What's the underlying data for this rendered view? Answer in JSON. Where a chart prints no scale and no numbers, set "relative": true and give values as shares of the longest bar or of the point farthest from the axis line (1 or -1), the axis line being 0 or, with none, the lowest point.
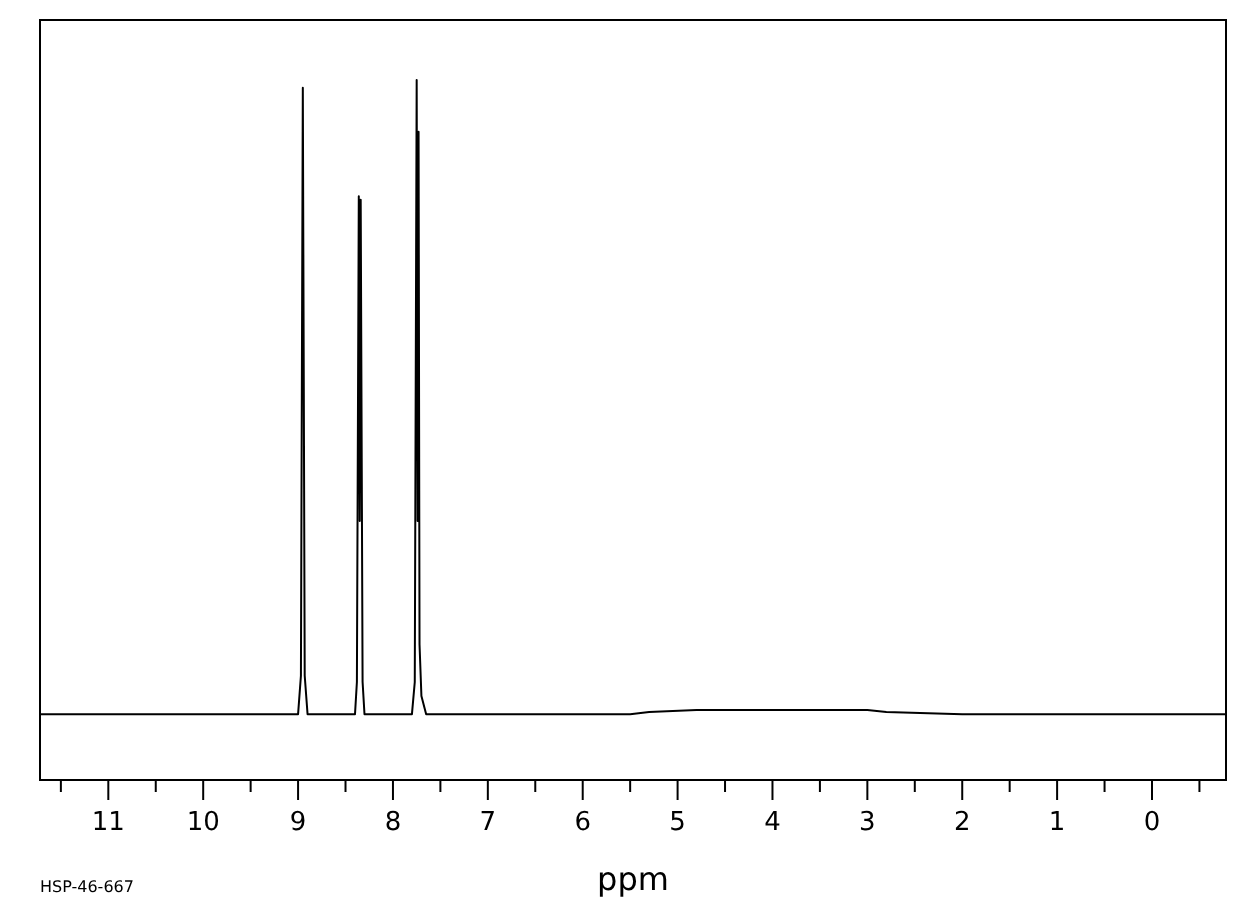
{
  "chart_data": {
    "type": "line",
    "relative": true,
    "xlabel": "ppm",
    "annotations": [
      "HSP-46-667"
    ],
    "xlim": [
      11.72,
      -0.78
    ],
    "xticks": [
      {
        "value": 11.5,
        "label": null
      },
      11,
      {
        "value": 10.5,
        "label": null
      },
      10,
      {
        "value": 9.5,
        "label": null
      },
      9,
      {
        "value": 8.5,
        "label": null
      },
      8,
      {
        "value": 7.5,
        "label": null
      },
      7,
      {
        "value": 6.5,
        "label": null
      },
      6,
      {
        "value": 5.5,
        "label": null
      },
      5,
      {
        "value": 4.5,
        "label": null
      },
      4,
      {
        "value": 3.5,
        "label": null
      },
      3,
      {
        "value": 2.5,
        "label": null
      },
      2,
      {
        "value": 1.5,
        "label": null
      },
      1,
      {
        "value": 0.5,
        "label": null
      },
      0,
      {
        "value": -0.5,
        "label": null
      }
    ],
    "grid": false,
    "marker": "none",
    "line_style": "solid",
    "series": [
      {
        "color": "#000000",
        "x": [
          11.72,
          9.2,
          9.0,
          8.97,
          8.95,
          8.93,
          8.9,
          8.4,
          8.38,
          8.36,
          8.35,
          8.34,
          8.32,
          8.3,
          7.8,
          7.77,
          7.75,
          7.74,
          7.73,
          7.72,
          7.7,
          7.65,
          5.5,
          5.3,
          4.8,
          3.0,
          2.8,
          2.0,
          -0.78
        ],
        "values": [
          0.094,
          0.094,
          0.094,
          0.149,
          0.989,
          0.149,
          0.094,
          0.094,
          0.14,
          0.834,
          0.37,
          0.829,
          0.14,
          0.094,
          0.094,
          0.14,
          1,
          0.37,
          0.926,
          0.194,
          0.12,
          0.094,
          0.094,
          0.097,
          0.1,
          0.1,
          0.097,
          0.094,
          0.094
        ]
      }
    ]
  }
}
